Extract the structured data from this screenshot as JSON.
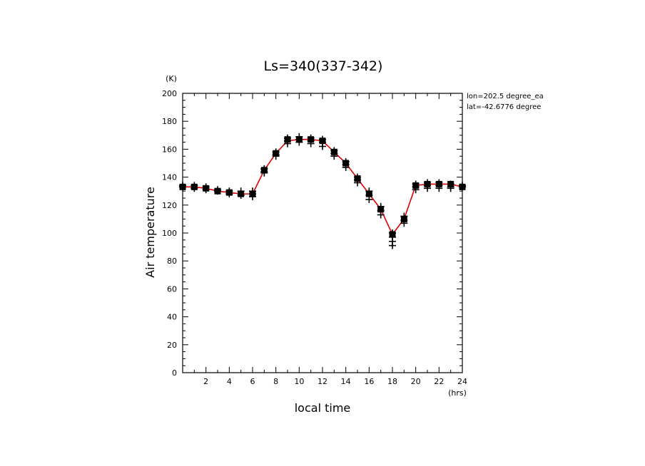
{
  "chart_data": {
    "type": "line",
    "title": "Ls=340(337-342)",
    "xlabel": "local time",
    "ylabel": "Air temperature",
    "x_unit": "(hrs)",
    "y_unit": "(K)",
    "xlim": [
      0,
      24
    ],
    "ylim": [
      0,
      200
    ],
    "x_ticks": [
      2,
      4,
      6,
      8,
      10,
      12,
      14,
      16,
      18,
      20,
      22,
      24
    ],
    "y_ticks": [
      0,
      20,
      40,
      60,
      80,
      100,
      120,
      140,
      160,
      180,
      200
    ],
    "grid": false,
    "annotations": [
      "lon=202.5 degree_ea",
      "lat=-42.6776 degree"
    ],
    "colors": {
      "line": "#e00000",
      "markers": "#000000"
    },
    "series": [
      {
        "style": "line",
        "x": [
          0,
          1,
          2,
          3,
          4,
          5,
          6,
          7,
          8,
          9,
          10,
          11,
          12,
          13,
          14,
          15,
          16,
          17,
          18,
          19,
          20,
          21,
          22,
          23,
          24
        ],
        "values": [
          133,
          133,
          132,
          130,
          129,
          128,
          128,
          145,
          157,
          166,
          167,
          167,
          166,
          158,
          150,
          139,
          128,
          117,
          99,
          110,
          134,
          135,
          135,
          135,
          133
        ]
      },
      {
        "style": "scatter-plus",
        "points": [
          [
            0,
            134
          ],
          [
            0,
            133
          ],
          [
            1,
            134
          ],
          [
            1,
            132
          ],
          [
            2,
            133
          ],
          [
            2,
            131
          ],
          [
            3,
            131
          ],
          [
            3,
            130
          ],
          [
            4,
            130
          ],
          [
            4,
            128
          ],
          [
            5,
            130
          ],
          [
            5,
            127
          ],
          [
            6,
            130
          ],
          [
            6,
            128
          ],
          [
            6,
            126
          ],
          [
            7,
            146
          ],
          [
            7,
            144
          ],
          [
            7,
            143
          ],
          [
            8,
            158
          ],
          [
            8,
            156
          ],
          [
            8,
            155
          ],
          [
            9,
            168
          ],
          [
            9,
            166
          ],
          [
            9,
            164
          ],
          [
            10,
            169
          ],
          [
            10,
            167
          ],
          [
            10,
            165
          ],
          [
            11,
            168
          ],
          [
            11,
            166
          ],
          [
            11,
            164
          ],
          [
            12,
            167
          ],
          [
            12,
            165
          ],
          [
            12,
            162
          ],
          [
            13,
            159
          ],
          [
            13,
            157
          ],
          [
            13,
            155
          ],
          [
            14,
            151
          ],
          [
            14,
            149
          ],
          [
            14,
            147
          ],
          [
            15,
            140
          ],
          [
            15,
            138
          ],
          [
            15,
            136
          ],
          [
            16,
            130
          ],
          [
            16,
            127
          ],
          [
            16,
            124
          ],
          [
            17,
            119
          ],
          [
            17,
            116
          ],
          [
            17,
            113
          ],
          [
            18,
            100
          ],
          [
            18,
            97
          ],
          [
            18,
            94
          ],
          [
            18,
            91
          ],
          [
            19,
            112
          ],
          [
            19,
            109
          ],
          [
            19,
            107
          ],
          [
            20,
            135
          ],
          [
            20,
            133
          ],
          [
            20,
            131
          ],
          [
            21,
            136
          ],
          [
            21,
            134
          ],
          [
            21,
            132
          ],
          [
            22,
            136
          ],
          [
            22,
            134
          ],
          [
            22,
            132
          ],
          [
            23,
            135
          ],
          [
            23,
            133
          ],
          [
            23,
            132
          ],
          [
            24,
            134
          ],
          [
            24,
            133
          ]
        ]
      },
      {
        "style": "square",
        "x": [
          0,
          1,
          2,
          3,
          4,
          5,
          6,
          7,
          8,
          9,
          10,
          11,
          12,
          13,
          14,
          15,
          16,
          17,
          18,
          19,
          20,
          21,
          22,
          23,
          24
        ],
        "values": [
          133,
          133,
          132,
          130,
          129,
          128,
          128,
          145,
          157,
          167,
          167,
          167,
          166,
          158,
          150,
          139,
          128,
          117,
          99,
          110,
          134,
          135,
          135,
          135,
          133
        ]
      }
    ]
  }
}
